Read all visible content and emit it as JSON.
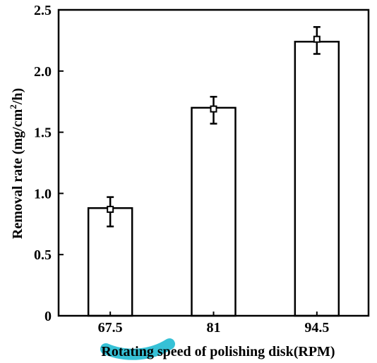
{
  "chart_data": {
    "type": "bar",
    "categories": [
      "67.5",
      "81",
      "94.5"
    ],
    "values": [
      0.88,
      1.7,
      2.24
    ],
    "markers": [
      0.87,
      1.69,
      2.26
    ],
    "error_low": [
      0.73,
      1.57,
      2.14
    ],
    "error_high": [
      0.97,
      1.79,
      2.36
    ],
    "xlabel": "Rotating speed of polishing disk(RPM)",
    "ylabel": "Removal rate (mg/cm²/h)",
    "ylim": [
      0,
      2.5
    ],
    "yticks": [
      0,
      0.5,
      1.0,
      1.5,
      2.0,
      2.5
    ],
    "ytick_labels": [
      "0",
      "0.5",
      "1.0",
      "1.5",
      "2.0",
      "2.5"
    ],
    "grid": false,
    "legend": "none",
    "colors": {
      "bar_fill": "#ffffff",
      "bar_stroke": "#000000",
      "watermark": "#36c1d6"
    }
  }
}
